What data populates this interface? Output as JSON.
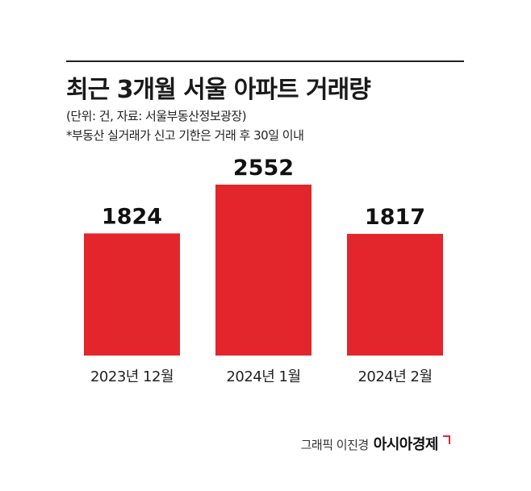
{
  "chart_data": {
    "type": "bar",
    "title": "최근 3개월 서울 아파트 거래량",
    "subtitle": "(단위: 건, 자료: 서울부동산정보광장)",
    "note": "*부동산 실거래가 신고 기한은 거래 후 30일 이내",
    "categories": [
      "2023년 12월",
      "2024년 1월",
      "2024년 2월"
    ],
    "values": [
      1824,
      2552,
      1817
    ],
    "xlabel": "",
    "ylabel": "",
    "ylim": [
      0,
      2552
    ],
    "grid": false,
    "bar_color": "#e3262b"
  },
  "credit": {
    "author": "그래픽 이진경",
    "brand": "아시아경제"
  }
}
